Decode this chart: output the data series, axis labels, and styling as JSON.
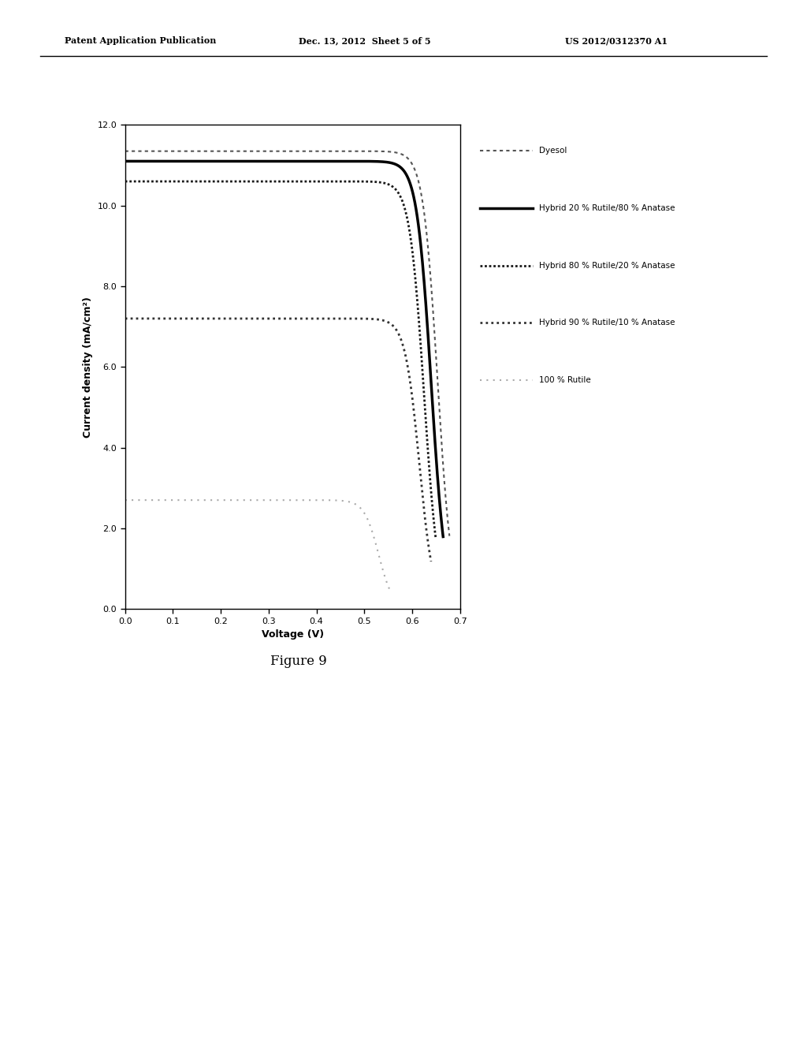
{
  "title": "",
  "xlabel": "Voltage (V)",
  "ylabel": "Current density (mA/cm²)",
  "xlim": [
    0.0,
    0.7
  ],
  "ylim": [
    0.0,
    12.0
  ],
  "xticks": [
    0.0,
    0.1,
    0.2,
    0.3,
    0.4,
    0.5,
    0.6,
    0.7
  ],
  "yticks": [
    0.0,
    2.0,
    4.0,
    6.0,
    8.0,
    10.0,
    12.0
  ],
  "header_left": "Patent Application Publication",
  "header_center": "Dec. 13, 2012  Sheet 5 of 5",
  "header_right": "US 2012/0312370 A1",
  "figure_label": "Figure 9",
  "curves": [
    {
      "label": "Dyesol",
      "style": "dotted_dark",
      "color": "#555555",
      "linewidth": 1.5,
      "jsc": 11.35,
      "voc": 0.673,
      "sharpness": 18
    },
    {
      "label": "Hybrid 20 % Rutile/80 % Anatase",
      "style": "solid",
      "color": "#000000",
      "linewidth": 2.5,
      "jsc": 11.1,
      "voc": 0.66,
      "sharpness": 18
    },
    {
      "label": "Hybrid 80 % Rutile/20 % Anatase",
      "style": "dense_dotted",
      "color": "#1a1a1a",
      "linewidth": 2.0,
      "jsc": 10.6,
      "voc": 0.645,
      "sharpness": 16
    },
    {
      "label": "Hybrid 90 % Rutile/10 % Anatase",
      "style": "dense_dotted2",
      "color": "#333333",
      "linewidth": 2.0,
      "jsc": 7.2,
      "voc": 0.635,
      "sharpness": 14
    },
    {
      "label": "100 % Rutile",
      "style": "loose_dotted",
      "color": "#aaaaaa",
      "linewidth": 1.5,
      "jsc": 2.7,
      "voc": 0.55,
      "sharpness": 10
    }
  ],
  "background_color": "#ffffff",
  "plot_bg_color": "#ffffff",
  "font_color": "#000000",
  "font_size": 9,
  "figure_label_fontsize": 12,
  "legend_items": [
    {
      "label": "Dyesol",
      "style": "dotted_dark",
      "color": "#555555",
      "lw": 1.5
    },
    {
      "label": "Hybrid 20 % Rutile/80 % Anatase",
      "style": "solid",
      "color": "#000000",
      "lw": 2.5
    },
    {
      "label": "Hybrid 80 % Rutile/20 % Anatase",
      "style": "dense_dotted",
      "color": "#1a1a1a",
      "lw": 2.0
    },
    {
      "label": "Hybrid 90 % Rutile/10 % Anatase",
      "style": "dense_dotted2",
      "color": "#333333",
      "lw": 2.0
    },
    {
      "label": "100 % Rutile",
      "style": "loose_dotted",
      "color": "#aaaaaa",
      "lw": 1.5
    }
  ]
}
